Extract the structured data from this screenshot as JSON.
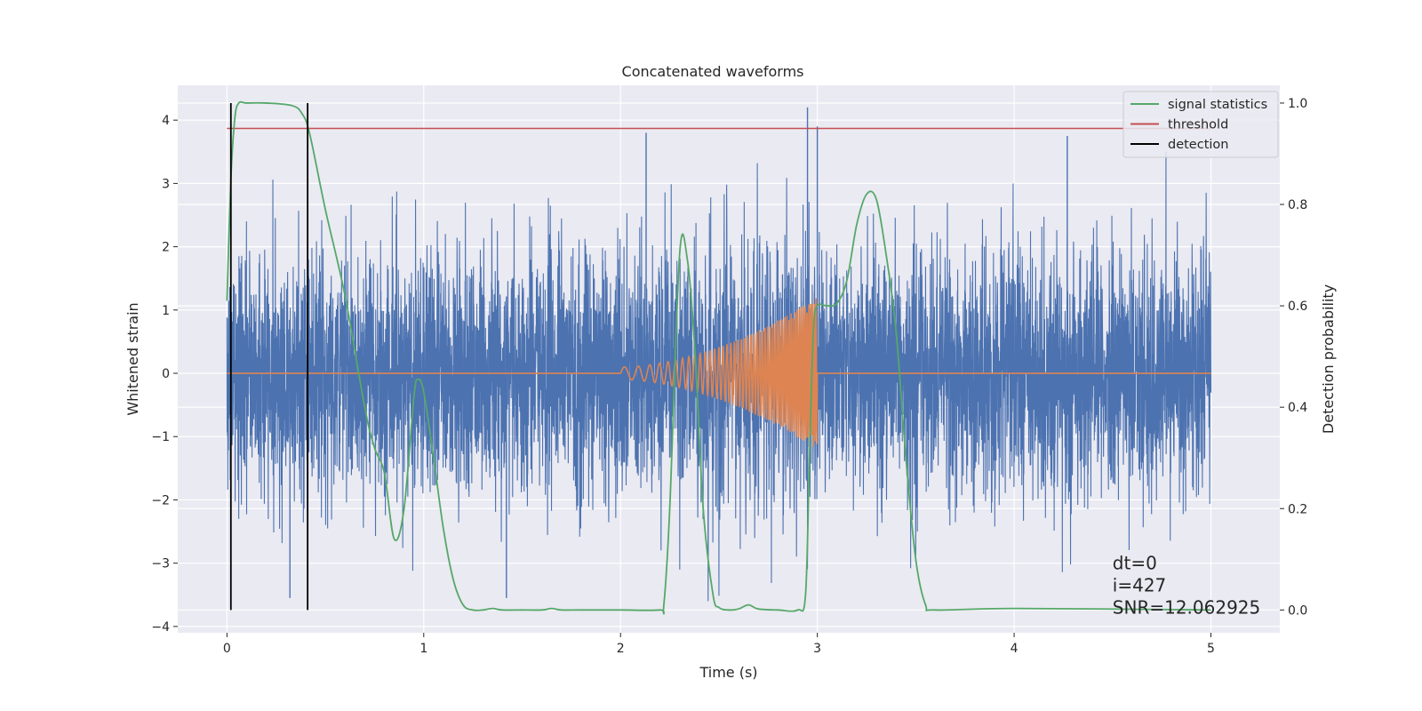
{
  "chart_data": {
    "type": "line",
    "title": "Concatenated waveforms",
    "xlabel": "Time (s)",
    "ylabel_left": "Whitened strain",
    "ylabel_right": "Detection probability",
    "xlim": [
      -0.25,
      5.35
    ],
    "ylim_left": [
      -4.1,
      4.55
    ],
    "ylim_right": [
      -0.045,
      1.035
    ],
    "x_ticks": [
      0,
      1,
      2,
      3,
      4,
      5
    ],
    "x_tick_labels": [
      "0",
      "1",
      "2",
      "3",
      "4",
      "5"
    ],
    "y_left_ticks": [
      4,
      3,
      2,
      1,
      0,
      -1,
      -2,
      -3,
      -4
    ],
    "y_left_tick_labels": [
      "4",
      "3",
      "2",
      "1",
      "0",
      "−1",
      "−2",
      "−3",
      "−4"
    ],
    "y_right_ticks": [
      1.0,
      0.8,
      0.6,
      0.4,
      0.2,
      0.0
    ],
    "y_right_tick_labels": [
      "1.0",
      "0.8",
      "0.6",
      "0.4",
      "0.2",
      "0.0"
    ],
    "grid": true,
    "legend_position": "upper right",
    "legend": [
      {
        "label": "signal statistics",
        "color": "#55a868"
      },
      {
        "label": "threshold",
        "color": "#c44e52"
      },
      {
        "label": "detection",
        "color": "#000000"
      }
    ],
    "series": [
      {
        "name": "Whitened strain (noise + signal)",
        "axis": "left",
        "color": "#4c72b0",
        "x_range": [
          0,
          5
        ],
        "amplitude_std": 1.0,
        "notable_peaks": [
          {
            "x": 2.13,
            "y": 3.8
          },
          {
            "x": 2.95,
            "y": 4.2
          },
          {
            "x": 3.0,
            "y": 3.9
          },
          {
            "x": 4.27,
            "y": 3.75
          },
          {
            "x": 0.32,
            "y": -3.55
          },
          {
            "x": 1.42,
            "y": -3.55
          }
        ]
      },
      {
        "name": "Injected waveform",
        "axis": "left",
        "color": "#dd8452",
        "x_range": [
          0,
          5
        ],
        "chirp_start": 2.0,
        "chirp_end": 3.0,
        "chirp_start_amplitude": 0.1,
        "chirp_end_amplitude": 1.2
      },
      {
        "name": "signal statistics",
        "axis": "right",
        "color": "#55a868",
        "x": [
          0.0,
          0.02,
          0.04,
          0.06,
          0.1,
          0.2,
          0.33,
          0.38,
          0.42,
          0.5,
          0.6,
          0.7,
          0.75,
          0.8,
          0.85,
          0.9,
          0.95,
          0.97,
          1.0,
          1.05,
          1.1,
          1.15,
          1.2,
          1.25,
          1.3,
          1.35,
          1.4,
          1.5,
          1.6,
          1.65,
          1.7,
          1.8,
          2.0,
          2.2,
          2.22,
          2.25,
          2.3,
          2.34,
          2.38,
          2.42,
          2.47,
          2.5,
          2.55,
          2.6,
          2.65,
          2.7,
          2.8,
          2.9,
          2.94,
          2.96,
          2.98,
          3.0,
          3.05,
          3.1,
          3.15,
          3.2,
          3.25,
          3.3,
          3.35,
          3.4,
          3.45,
          3.5,
          3.55,
          3.6,
          4.0,
          5.0
        ],
        "y": [
          0.61,
          0.85,
          0.97,
          1.0,
          1.0,
          1.0,
          0.995,
          0.98,
          0.94,
          0.79,
          0.62,
          0.4,
          0.32,
          0.27,
          0.14,
          0.2,
          0.42,
          0.455,
          0.43,
          0.3,
          0.16,
          0.06,
          0.01,
          0.0,
          0.0,
          0.003,
          0.0,
          0.0,
          0.0,
          0.003,
          0.0,
          0.0,
          0.0,
          0.0,
          0.01,
          0.2,
          0.7,
          0.69,
          0.5,
          0.2,
          0.03,
          0.005,
          0.0,
          0.002,
          0.01,
          0.002,
          0.0,
          0.0,
          0.03,
          0.3,
          0.55,
          0.6,
          0.6,
          0.605,
          0.65,
          0.76,
          0.82,
          0.81,
          0.7,
          0.55,
          0.3,
          0.1,
          0.01,
          0.0,
          0.003,
          0.0
        ]
      },
      {
        "name": "threshold",
        "axis": "right",
        "color": "#c44e52",
        "x": [
          0,
          5
        ],
        "y": [
          0.95,
          0.95
        ]
      },
      {
        "name": "detection",
        "axis": "right",
        "color": "#000000",
        "vertical_lines_x": [
          0.02,
          0.41
        ],
        "y_range": [
          0.0,
          1.0
        ]
      }
    ],
    "annotations": [
      {
        "text": "dt=0",
        "x": 4.5,
        "y_strain": -3.0
      },
      {
        "text": "i=427",
        "x": 4.5,
        "y_strain": -3.35
      },
      {
        "text": "SNR=12.062925",
        "x": 4.5,
        "y_strain": -3.7
      }
    ]
  }
}
